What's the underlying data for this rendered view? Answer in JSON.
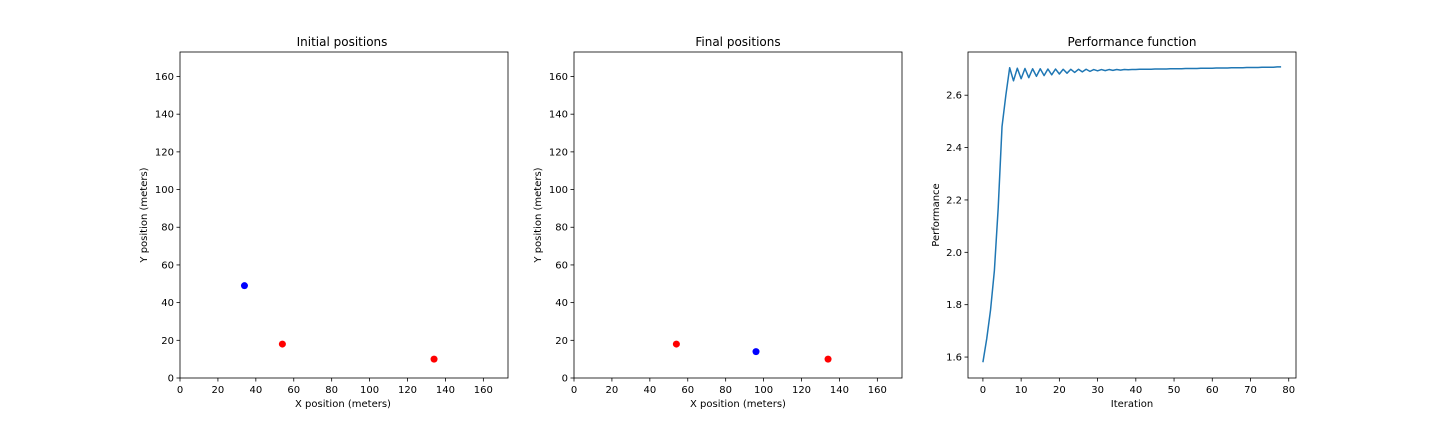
{
  "chart_data": [
    {
      "type": "scatter",
      "title": "Initial positions",
      "xlabel": "X position (meters)",
      "ylabel": "Y position (meters)",
      "xlim": [
        0,
        173
      ],
      "ylim": [
        0,
        173
      ],
      "xticks": [
        0,
        20,
        40,
        60,
        80,
        100,
        120,
        140,
        160
      ],
      "yticks": [
        0,
        20,
        40,
        60,
        80,
        100,
        120,
        140,
        160
      ],
      "grid": false,
      "series": [
        {
          "color": "#0000ff",
          "points": [
            [
              34,
              49
            ]
          ]
        },
        {
          "color": "#ff0000",
          "points": [
            [
              54,
              18
            ],
            [
              134,
              10
            ]
          ]
        }
      ]
    },
    {
      "type": "scatter",
      "title": "Final positions",
      "xlabel": "X position (meters)",
      "ylabel": "Y position (meters)",
      "xlim": [
        0,
        173
      ],
      "ylim": [
        0,
        173
      ],
      "xticks": [
        0,
        20,
        40,
        60,
        80,
        100,
        120,
        140,
        160
      ],
      "yticks": [
        0,
        20,
        40,
        60,
        80,
        100,
        120,
        140,
        160
      ],
      "grid": false,
      "series": [
        {
          "color": "#0000ff",
          "points": [
            [
              96,
              14
            ]
          ]
        },
        {
          "color": "#ff0000",
          "points": [
            [
              54,
              18
            ],
            [
              134,
              10
            ]
          ]
        }
      ]
    },
    {
      "type": "line",
      "title": "Performance function",
      "xlabel": "Iteration",
      "ylabel": "Performance",
      "xlim": [
        -3.9,
        81.9
      ],
      "ylim": [
        1.52,
        2.765
      ],
      "xticks": [
        0,
        10,
        20,
        30,
        40,
        50,
        60,
        70,
        80
      ],
      "yticks": [
        1.6,
        1.8,
        2.0,
        2.2,
        2.4,
        2.6
      ],
      "ytick_labels": [
        "1.6",
        "1.8",
        "2.0",
        "2.2",
        "2.4",
        "2.6"
      ],
      "grid": false,
      "series": [
        {
          "color": "#1f77b4",
          "x": [
            0,
            1,
            2,
            3,
            4,
            5,
            6,
            7,
            8,
            9,
            10,
            11,
            12,
            13,
            14,
            15,
            16,
            17,
            18,
            19,
            20,
            21,
            22,
            23,
            24,
            25,
            26,
            27,
            28,
            29,
            30,
            31,
            32,
            33,
            34,
            35,
            36,
            37,
            38,
            39,
            40,
            41,
            42,
            43,
            44,
            45,
            46,
            47,
            48,
            49,
            50,
            51,
            52,
            53,
            54,
            55,
            56,
            57,
            58,
            59,
            60,
            61,
            62,
            63,
            64,
            65,
            66,
            67,
            68,
            69,
            70,
            71,
            72,
            73,
            74,
            75,
            76,
            77,
            78
          ],
          "values": [
            1.58,
            1.67,
            1.78,
            1.93,
            2.17,
            2.48,
            2.6,
            2.705,
            2.655,
            2.703,
            2.663,
            2.702,
            2.667,
            2.701,
            2.672,
            2.701,
            2.675,
            2.7,
            2.678,
            2.7,
            2.681,
            2.699,
            2.684,
            2.699,
            2.687,
            2.699,
            2.689,
            2.699,
            2.691,
            2.698,
            2.693,
            2.698,
            2.694,
            2.698,
            2.695,
            2.698,
            2.696,
            2.698,
            2.697,
            2.698,
            2.698,
            2.699,
            2.699,
            2.699,
            2.699,
            2.7,
            2.7,
            2.7,
            2.7,
            2.701,
            2.701,
            2.701,
            2.701,
            2.702,
            2.702,
            2.702,
            2.702,
            2.703,
            2.703,
            2.703,
            2.703,
            2.704,
            2.704,
            2.704,
            2.704,
            2.705,
            2.705,
            2.705,
            2.705,
            2.706,
            2.706,
            2.706,
            2.706,
            2.707,
            2.707,
            2.707,
            2.707,
            2.708,
            2.708
          ]
        }
      ]
    }
  ]
}
